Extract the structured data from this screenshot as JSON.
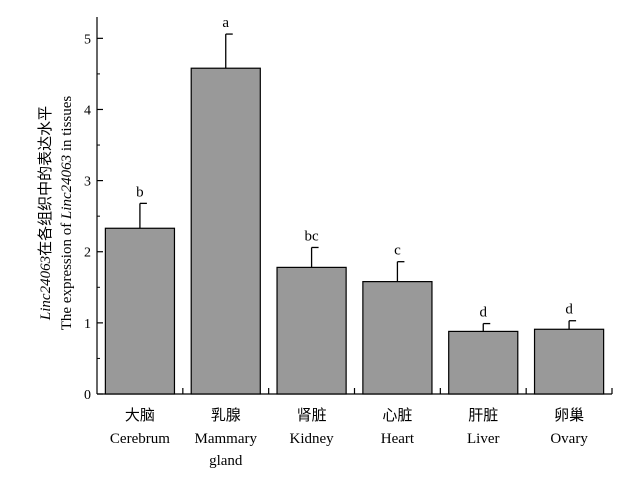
{
  "chart_data": {
    "type": "bar",
    "ylabel_line1_italic": "Linc24063",
    "ylabel_line1_cn": "在各组织中的表达水平",
    "ylabel_line2_prefix": "The expression of ",
    "ylabel_line2_italic": "Linc24063",
    "ylabel_line2_suffix": " in tissues",
    "xlabel": "",
    "ylim": [
      0,
      5.3
    ],
    "yticks": [
      0,
      1,
      2,
      3,
      4,
      5
    ],
    "grid": false,
    "legend": "none",
    "categories": [
      {
        "cn": "大脑",
        "en": [
          "Cerebrum"
        ]
      },
      {
        "cn": "乳腺",
        "en": [
          "Mammary",
          "gland"
        ]
      },
      {
        "cn": "肾脏",
        "en": [
          "Kidney"
        ]
      },
      {
        "cn": "心脏",
        "en": [
          "Heart"
        ]
      },
      {
        "cn": "肝脏",
        "en": [
          "Liver"
        ]
      },
      {
        "cn": "卵巢",
        "en": [
          "Ovary"
        ]
      }
    ],
    "values": [
      2.33,
      4.58,
      1.78,
      1.58,
      0.88,
      0.91
    ],
    "error_upper": [
      0.35,
      0.48,
      0.28,
      0.28,
      0.11,
      0.12
    ],
    "significance_letters": [
      "b",
      "a",
      "bc",
      "c",
      "d",
      "d"
    ],
    "bar_color": "#999999",
    "bar_edge_color": "#000000"
  }
}
